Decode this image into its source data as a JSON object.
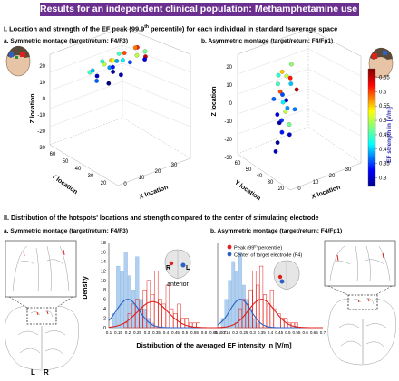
{
  "title": "Results for an independent clinical population: Methamphetamine use disorder (MUD)",
  "section1": {
    "heading_pre": "I. Location and strength  of the EF peak (99.9",
    "heading_sup": "th",
    "heading_post": " percentile) for each individual in standard fsaverage  space",
    "panel_a": "a. Symmetric montage (target/return: F4/F3)",
    "panel_b": "b. Asymmetric montage (target/return: F4/Fp1)"
  },
  "section2": {
    "heading": "II. Distribution of the hotspots' locations and strength compared to the center of stimulating electrode",
    "panel_a": "a. Symmetric montage (target/return: F4/F3)",
    "panel_b": "b. Asymmetric montage (target/return: F4/Fp1)",
    "brain_labels": {
      "left": "L",
      "right": "R",
      "anterior": "anterior",
      "inset_r": "R",
      "inset_l": "L"
    }
  },
  "colors": {
    "banner": "#6b2f8f",
    "peak": "#e0201b",
    "center": "#2b61c4",
    "axis_text": "#000000"
  },
  "chart_data": [
    {
      "type": "scatter",
      "subtype": "3d",
      "zlabel": "Z location",
      "ylabel": "Y location",
      "xlabel": "X location",
      "zlim": [
        -30,
        20
      ],
      "z_ticks": [
        "20",
        "10",
        "0",
        "-10",
        "-20",
        "-30"
      ],
      "y_ticks": [
        "60",
        "50",
        "40",
        "30",
        "20"
      ],
      "x_ticks": [
        "0",
        "10",
        "20",
        "30"
      ],
      "colormap": "jet",
      "points": [
        {
          "x": 8,
          "y": 52,
          "z": 14,
          "ef": 0.45
        },
        {
          "x": 12,
          "y": 48,
          "z": 16,
          "ef": 0.5
        },
        {
          "x": 16,
          "y": 50,
          "z": 18,
          "ef": 0.55
        },
        {
          "x": 20,
          "y": 47,
          "z": 20,
          "ef": 0.6
        },
        {
          "x": 22,
          "y": 52,
          "z": 17,
          "ef": 0.42
        },
        {
          "x": 24,
          "y": 50,
          "z": 14,
          "ef": 0.35
        },
        {
          "x": 18,
          "y": 55,
          "z": 15,
          "ef": 0.38
        },
        {
          "x": 26,
          "y": 48,
          "z": 22,
          "ef": 0.62
        },
        {
          "x": 14,
          "y": 45,
          "z": 12,
          "ef": 0.33
        },
        {
          "x": 10,
          "y": 50,
          "z": 10,
          "ef": 0.3
        },
        {
          "x": 28,
          "y": 52,
          "z": 18,
          "ef": 0.5
        },
        {
          "x": 20,
          "y": 56,
          "z": 12,
          "ef": 0.28
        },
        {
          "x": 15,
          "y": 42,
          "z": 19,
          "ef": 0.45
        },
        {
          "x": 23,
          "y": 44,
          "z": 21,
          "ef": 0.58
        },
        {
          "x": 6,
          "y": 46,
          "z": 13,
          "ef": 0.4
        },
        {
          "x": 30,
          "y": 49,
          "z": 15,
          "ef": 0.65
        },
        {
          "x": 12,
          "y": 54,
          "z": 8,
          "ef": 0.36
        },
        {
          "x": 18,
          "y": 46,
          "z": 6,
          "ef": 0.29
        },
        {
          "x": 25,
          "y": 40,
          "z": 16,
          "ef": 0.47
        },
        {
          "x": 21,
          "y": 58,
          "z": 20,
          "ef": 0.52
        },
        {
          "x": 9,
          "y": 44,
          "z": 17,
          "ef": 0.44
        },
        {
          "x": 27,
          "y": 44,
          "z": 12,
          "ef": 0.31
        },
        {
          "x": 16,
          "y": 52,
          "z": 4,
          "ef": 0.27
        },
        {
          "x": 13,
          "y": 40,
          "z": 14,
          "ef": 0.39
        }
      ]
    },
    {
      "type": "scatter",
      "subtype": "3d",
      "zlabel": "Z location",
      "ylabel": "Y location",
      "xlabel": "X location",
      "zlim": [
        -30,
        20
      ],
      "z_ticks": [
        "20",
        "10",
        "0",
        "-10",
        "-20",
        "-30"
      ],
      "y_ticks": [
        "60",
        "50",
        "40",
        "30",
        "20"
      ],
      "x_ticks": [
        "0",
        "10",
        "20",
        "30"
      ],
      "colormap": "jet",
      "colorbar_label": "EF strength in [V/m]",
      "colorbar_ticks": [
        "0.65",
        "0.6",
        "0.55",
        "0.5",
        "0.45",
        "0.4",
        "0.35",
        "0.3"
      ],
      "colorbar_range": [
        0.27,
        0.68
      ],
      "points": [
        {
          "x": 18,
          "y": 38,
          "z": 18,
          "ef": 0.55
        },
        {
          "x": 20,
          "y": 40,
          "z": 15,
          "ef": 0.5
        },
        {
          "x": 16,
          "y": 36,
          "z": 12,
          "ef": 0.45
        },
        {
          "x": 22,
          "y": 42,
          "z": 10,
          "ef": 0.4
        },
        {
          "x": 19,
          "y": 34,
          "z": 8,
          "ef": 0.6
        },
        {
          "x": 17,
          "y": 40,
          "z": 5,
          "ef": 0.35
        },
        {
          "x": 21,
          "y": 38,
          "z": 2,
          "ef": 0.3
        },
        {
          "x": 15,
          "y": 44,
          "z": 0,
          "ef": 0.42
        },
        {
          "x": 23,
          "y": 36,
          "z": -2,
          "ef": 0.38
        },
        {
          "x": 18,
          "y": 42,
          "z": -5,
          "ef": 0.5
        },
        {
          "x": 20,
          "y": 34,
          "z": -8,
          "ef": 0.34
        },
        {
          "x": 16,
          "y": 38,
          "z": -10,
          "ef": 0.29
        },
        {
          "x": 22,
          "y": 40,
          "z": -12,
          "ef": 0.47
        },
        {
          "x": 19,
          "y": 36,
          "z": -15,
          "ef": 0.33
        },
        {
          "x": 21,
          "y": 42,
          "z": -18,
          "ef": 0.3
        },
        {
          "x": 17,
          "y": 34,
          "z": -20,
          "ef": 0.28
        },
        {
          "x": 24,
          "y": 38,
          "z": 14,
          "ef": 0.62
        },
        {
          "x": 14,
          "y": 40,
          "z": 16,
          "ef": 0.44
        },
        {
          "x": 25,
          "y": 44,
          "z": 6,
          "ef": 0.66
        },
        {
          "x": 13,
          "y": 36,
          "z": 4,
          "ef": 0.36
        },
        {
          "x": 26,
          "y": 40,
          "z": -4,
          "ef": 0.37
        },
        {
          "x": 12,
          "y": 42,
          "z": -6,
          "ef": 0.31
        },
        {
          "x": 20,
          "y": 46,
          "z": 20,
          "ef": 0.48
        },
        {
          "x": 18,
          "y": 30,
          "z": -24,
          "ef": 0.3
        }
      ]
    },
    {
      "type": "bar",
      "subtype": "histogram with density curves",
      "ylabel": "Density",
      "xlabel": "Distribution of the averaged EF intensity in  [V/m]",
      "x_ticks": [
        "0.1",
        "0.15",
        "0.2",
        "0.25",
        "0.3",
        "0.35",
        "0.4",
        "0.45",
        "0.5",
        "0.55",
        "0.6",
        "0.65",
        "0.7"
      ],
      "y_ticks": [
        "0",
        "2",
        "4",
        "6",
        "8",
        "10",
        "12",
        "14",
        "16",
        "18"
      ],
      "xlim": [
        0.1,
        0.7
      ],
      "ylim": [
        0,
        18
      ],
      "series": [
        {
          "name": "Center of target electrode (F4)",
          "color": "#2b61c4",
          "bin_width": 0.02,
          "bin_starts": [
            0.12,
            0.14,
            0.16,
            0.18,
            0.2,
            0.22,
            0.24,
            0.26,
            0.28,
            0.3,
            0.32
          ],
          "values": [
            3,
            13,
            12,
            16,
            11,
            8,
            15,
            6,
            4,
            2,
            1
          ],
          "curve_mean": 0.2,
          "curve_sd": 0.06,
          "curve_peak": 6
        },
        {
          "name": "Peak (99th percentile)",
          "color": "#e0201b",
          "bin_width": 0.02,
          "bin_starts": [
            0.18,
            0.2,
            0.22,
            0.24,
            0.26,
            0.28,
            0.3,
            0.32,
            0.34,
            0.36,
            0.38,
            0.4,
            0.42,
            0.44,
            0.46,
            0.48,
            0.5,
            0.52,
            0.54,
            0.56
          ],
          "values": [
            1,
            3,
            5,
            6,
            4,
            8,
            10,
            7,
            12,
            6,
            5,
            9,
            4,
            3,
            5,
            2,
            2,
            1,
            1,
            1
          ],
          "curve_mean": 0.33,
          "curve_sd": 0.08,
          "curve_peak": 5.5
        }
      ]
    },
    {
      "type": "bar",
      "subtype": "histogram with density curves",
      "xlabel": "",
      "x_ticks": [
        "0.1",
        "0.15",
        "0.2",
        "0.25",
        "0.3",
        "0.35",
        "0.4",
        "0.45",
        "0.5",
        "0.55",
        "0.6",
        "0.65",
        "0.7"
      ],
      "xlim": [
        0.1,
        0.7
      ],
      "ylim": [
        0,
        18
      ],
      "legend_peak_pre": "Peak (99",
      "legend_peak_sup": "th",
      "legend_peak_post": " percentile)",
      "legend_center": "Center of target electrode (F4)",
      "series": [
        {
          "name": "Center of target electrode (F4)",
          "color": "#2b61c4",
          "bin_width": 0.02,
          "bin_starts": [
            0.12,
            0.14,
            0.16,
            0.18,
            0.2,
            0.22,
            0.24,
            0.26,
            0.28,
            0.3,
            0.32
          ],
          "values": [
            2,
            6,
            10,
            14,
            12,
            16,
            9,
            6,
            4,
            2,
            1
          ],
          "curve_mean": 0.23,
          "curve_sd": 0.06,
          "curve_peak": 6
        },
        {
          "name": "Peak (99th percentile)",
          "color": "#e0201b",
          "bin_width": 0.02,
          "bin_starts": [
            0.2,
            0.22,
            0.24,
            0.26,
            0.28,
            0.3,
            0.32,
            0.34,
            0.36,
            0.38,
            0.4,
            0.42,
            0.44,
            0.46,
            0.48,
            0.5,
            0.52,
            0.54
          ],
          "values": [
            1,
            4,
            6,
            5,
            8,
            12,
            9,
            13,
            7,
            5,
            8,
            4,
            3,
            2,
            2,
            1,
            1,
            1
          ],
          "curve_mean": 0.35,
          "curve_sd": 0.075,
          "curve_peak": 6
        }
      ]
    }
  ]
}
